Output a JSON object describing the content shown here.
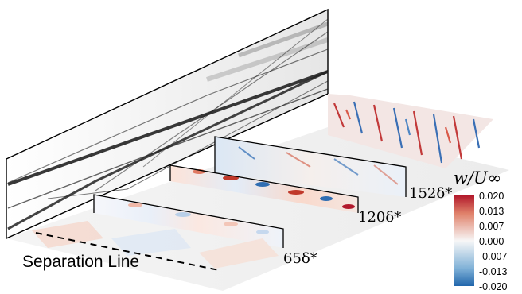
{
  "labels": {
    "separation_line": "Separation Line",
    "stations": [
      "65δ*",
      "120δ*",
      "152δ*"
    ],
    "colorbar_title": "w/U∞"
  },
  "colorbar": {
    "ticks": [
      "0.020",
      "0.013",
      "0.007",
      "0.000",
      "-0.007",
      "-0.013",
      "-0.020"
    ],
    "colors": {
      "max": "#b2182b",
      "mid": "#f7f7f7",
      "min": "#2166ac"
    }
  }
}
